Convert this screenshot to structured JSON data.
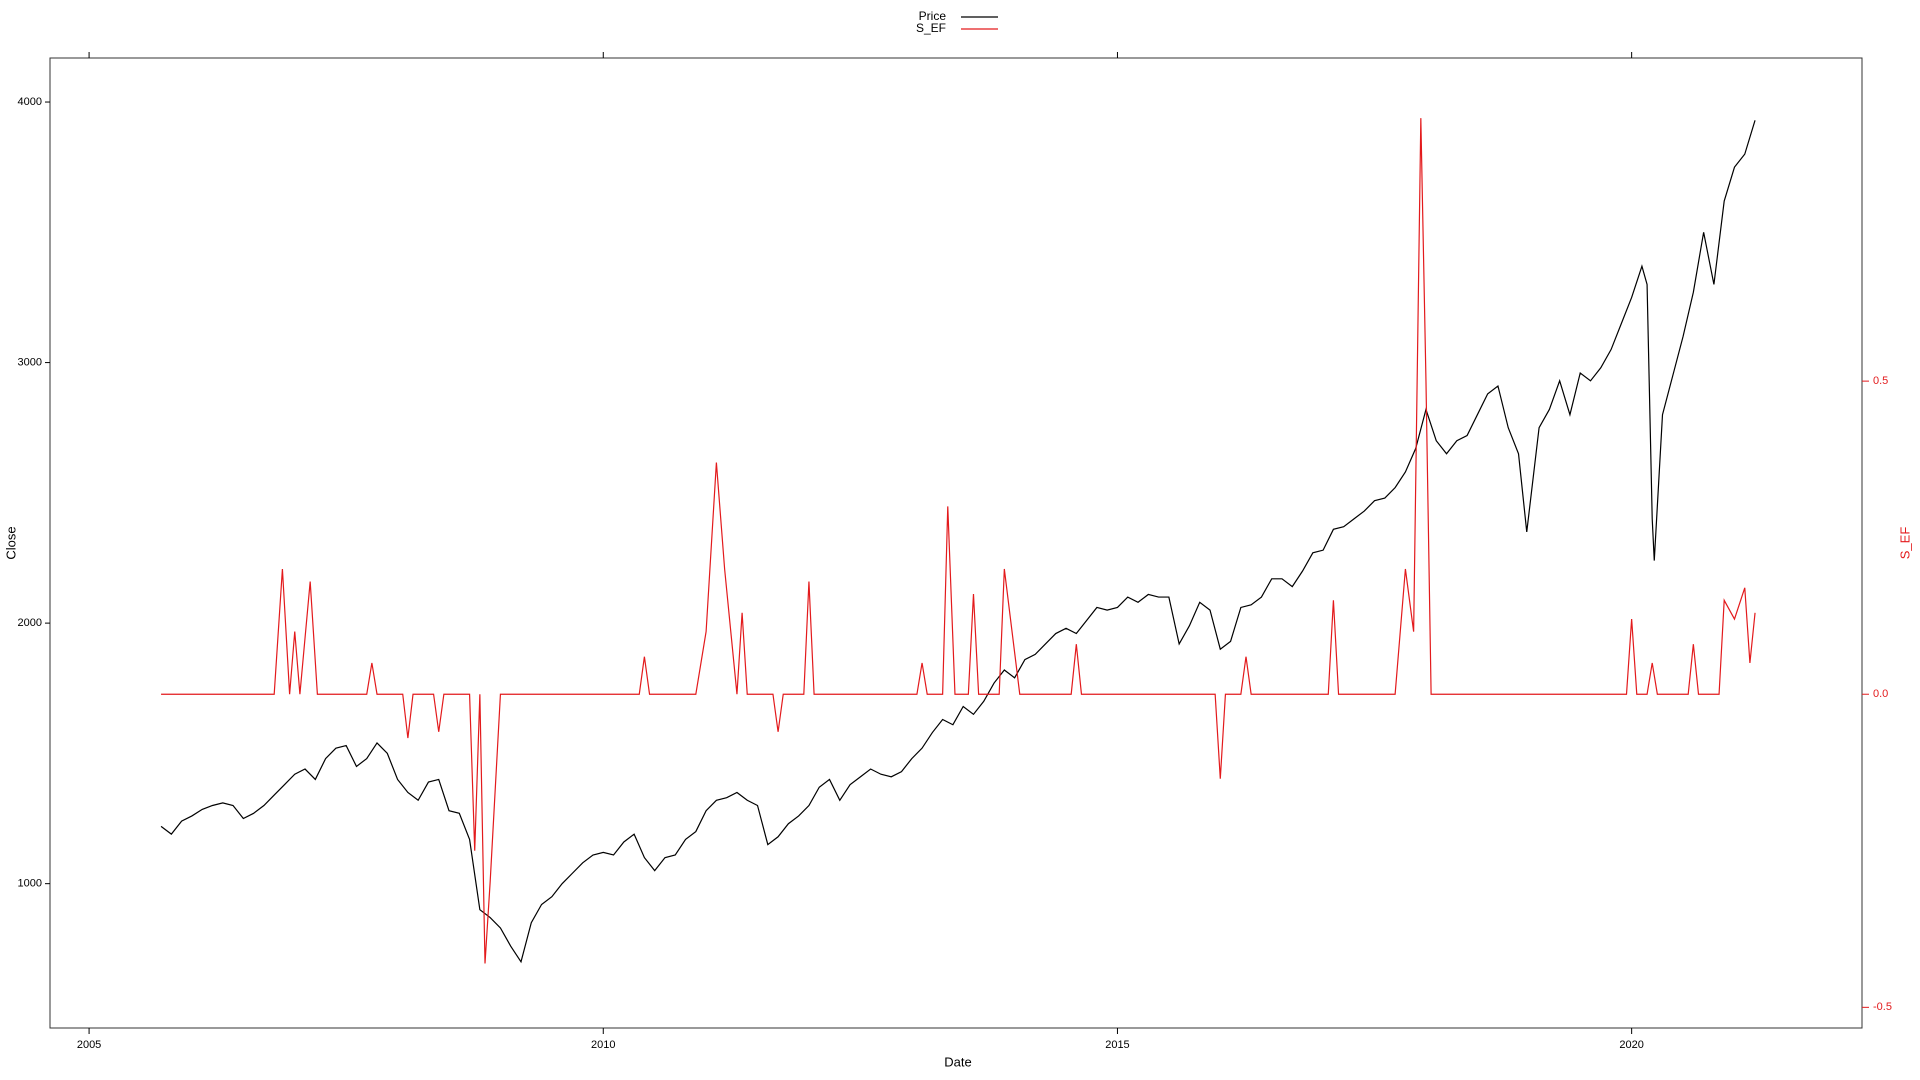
{
  "chart_data": {
    "type": "line",
    "xlabel": "Date",
    "ylabel": "Close",
    "y2label": "S_EF",
    "xlim": [
      2004.62,
      2022.24
    ],
    "xticks": [
      2005,
      2010,
      2015,
      2020
    ],
    "ylim": [
      446,
      4169
    ],
    "yticks": [
      1000,
      2000,
      3000,
      4000
    ],
    "y2lim": [
      -0.533,
      1.016
    ],
    "y2ticks": [
      -0.5,
      {
        "value": 0,
        "label": "0.0"
      },
      0.5
    ],
    "y2color": "#e31a1c",
    "grid": false,
    "legend": "top",
    "series": [
      {
        "name": "Price",
        "color": "#000000",
        "axis": "y",
        "x": [
          2005.7,
          2005.8,
          2005.9,
          2006.0,
          2006.1,
          2006.2,
          2006.3,
          2006.4,
          2006.5,
          2006.6,
          2006.7,
          2006.8,
          2006.9,
          2007.0,
          2007.1,
          2007.2,
          2007.3,
          2007.4,
          2007.5,
          2007.6,
          2007.7,
          2007.8,
          2007.9,
          2008.0,
          2008.1,
          2008.2,
          2008.3,
          2008.4,
          2008.5,
          2008.6,
          2008.7,
          2008.8,
          2008.9,
          2009.0,
          2009.1,
          2009.2,
          2009.3,
          2009.4,
          2009.5,
          2009.6,
          2009.7,
          2009.8,
          2009.9,
          2010.0,
          2010.1,
          2010.2,
          2010.3,
          2010.4,
          2010.5,
          2010.6,
          2010.7,
          2010.8,
          2010.9,
          2011.0,
          2011.1,
          2011.2,
          2011.3,
          2011.4,
          2011.5,
          2011.6,
          2011.7,
          2011.8,
          2011.9,
          2012.0,
          2012.1,
          2012.2,
          2012.3,
          2012.4,
          2012.5,
          2012.6,
          2012.7,
          2012.8,
          2012.9,
          2013.0,
          2013.1,
          2013.2,
          2013.3,
          2013.4,
          2013.5,
          2013.6,
          2013.7,
          2013.8,
          2013.9,
          2014.0,
          2014.1,
          2014.2,
          2014.3,
          2014.4,
          2014.5,
          2014.6,
          2014.7,
          2014.8,
          2014.9,
          2015.0,
          2015.1,
          2015.2,
          2015.3,
          2015.4,
          2015.5,
          2015.6,
          2015.7,
          2015.8,
          2015.9,
          2016.0,
          2016.1,
          2016.2,
          2016.3,
          2016.4,
          2016.5,
          2016.6,
          2016.7,
          2016.8,
          2016.9,
          2017.0,
          2017.1,
          2017.2,
          2017.3,
          2017.4,
          2017.5,
          2017.6,
          2017.7,
          2017.8,
          2017.9,
          2018.0,
          2018.1,
          2018.2,
          2018.3,
          2018.4,
          2018.5,
          2018.6,
          2018.7,
          2018.8,
          2018.9,
          2018.98,
          2019.1,
          2019.2,
          2019.3,
          2019.4,
          2019.5,
          2019.6,
          2019.7,
          2019.8,
          2019.9,
          2020.0,
          2020.1,
          2020.15,
          2020.2,
          2020.22,
          2020.3,
          2020.4,
          2020.5,
          2020.6,
          2020.7,
          2020.75,
          2020.8,
          2020.9,
          2021.0,
          2021.1,
          2021.2
        ],
        "values": [
          1220,
          1190,
          1240,
          1260,
          1285,
          1300,
          1310,
          1300,
          1250,
          1270,
          1300,
          1340,
          1380,
          1420,
          1440,
          1400,
          1480,
          1520,
          1530,
          1450,
          1480,
          1540,
          1500,
          1400,
          1350,
          1320,
          1390,
          1400,
          1280,
          1270,
          1170,
          900,
          870,
          830,
          760,
          700,
          850,
          920,
          950,
          1000,
          1040,
          1080,
          1110,
          1120,
          1110,
          1160,
          1190,
          1100,
          1050,
          1100,
          1110,
          1170,
          1200,
          1280,
          1320,
          1330,
          1350,
          1320,
          1300,
          1150,
          1180,
          1230,
          1260,
          1300,
          1370,
          1400,
          1320,
          1380,
          1410,
          1440,
          1420,
          1410,
          1430,
          1480,
          1520,
          1580,
          1630,
          1610,
          1680,
          1650,
          1700,
          1770,
          1820,
          1790,
          1860,
          1880,
          1920,
          1960,
          1980,
          1960,
          2010,
          2060,
          2050,
          2060,
          2100,
          2080,
          2110,
          2100,
          2100,
          1920,
          1990,
          2080,
          2050,
          1900,
          1930,
          2060,
          2070,
          2100,
          2170,
          2170,
          2140,
          2200,
          2270,
          2280,
          2360,
          2370,
          2400,
          2430,
          2470,
          2480,
          2520,
          2580,
          2670,
          2820,
          2700,
          2650,
          2700,
          2720,
          2800,
          2880,
          2910,
          2750,
          2650,
          2350,
          2750,
          2820,
          2930,
          2800,
          2960,
          2930,
          2980,
          3050,
          3150,
          3250,
          3370,
          3300,
          2400,
          2240,
          2800,
          2950,
          3100,
          3270,
          3500,
          3400,
          3300,
          3620,
          3750,
          3800,
          3930
        ]
      },
      {
        "name": "S_EF",
        "color": "#e31a1c",
        "axis": "y2",
        "x": [
          2005.7,
          2006.8,
          2006.88,
          2006.95,
          2007.0,
          2007.05,
          2007.15,
          2007.22,
          2007.7,
          2007.75,
          2007.8,
          2008.05,
          2008.1,
          2008.15,
          2008.35,
          2008.4,
          2008.45,
          2008.7,
          2008.75,
          2008.8,
          2008.85,
          2008.9,
          2009.0,
          2010.35,
          2010.4,
          2010.45,
          2010.9,
          2011.0,
          2011.1,
          2011.18,
          2011.3,
          2011.35,
          2011.4,
          2011.65,
          2011.7,
          2011.75,
          2011.95,
          2012.0,
          2012.05,
          2013.05,
          2013.1,
          2013.15,
          2013.3,
          2013.35,
          2013.42,
          2013.55,
          2013.6,
          2013.65,
          2013.85,
          2013.9,
          2014.05,
          2014.55,
          2014.6,
          2014.65,
          2015.95,
          2016.0,
          2016.05,
          2016.2,
          2016.25,
          2016.3,
          2017.05,
          2017.1,
          2017.15,
          2017.7,
          2017.8,
          2017.88,
          2017.95,
          2018.0,
          2018.05,
          2019.95,
          2020.0,
          2020.05,
          2020.15,
          2020.2,
          2020.25,
          2020.55,
          2020.6,
          2020.65,
          2020.85,
          2020.9,
          2021.0,
          2021.1,
          2021.15,
          2021.2
        ],
        "values": [
          0,
          0,
          0.2,
          0,
          0.1,
          0,
          0.18,
          0,
          0,
          0.05,
          0,
          0,
          -0.07,
          0,
          0,
          -0.06,
          0,
          0,
          -0.25,
          0,
          -0.43,
          -0.3,
          0,
          0,
          0.06,
          0,
          0,
          0.1,
          0.37,
          0.2,
          0,
          0.13,
          0,
          0,
          -0.06,
          0,
          0,
          0.18,
          0,
          0,
          0.05,
          0,
          0,
          0.3,
          0,
          0,
          0.16,
          0,
          0,
          0.2,
          0,
          0,
          0.08,
          0,
          0,
          -0.135,
          0,
          0,
          0.06,
          0,
          0,
          0.15,
          0,
          0,
          0.2,
          0.1,
          0.92,
          0.5,
          0,
          0,
          0.12,
          0,
          0,
          0.05,
          0,
          0,
          0.08,
          0,
          0,
          0.15,
          0.12,
          0.17,
          0.05,
          0.13
        ]
      }
    ]
  }
}
